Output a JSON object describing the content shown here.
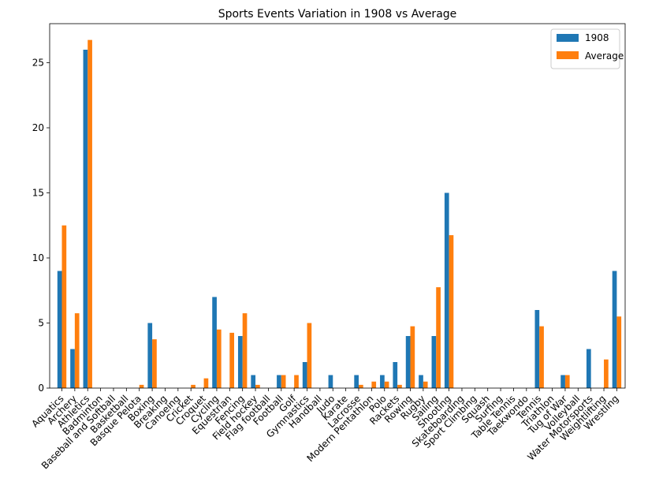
{
  "chart_data": {
    "type": "bar",
    "title": "Sports Events Variation in 1908 vs Average",
    "xlabel": "",
    "ylabel": "",
    "ylim": [
      0,
      28
    ],
    "yticks": [
      0,
      5,
      10,
      15,
      20,
      25
    ],
    "grid": false,
    "legend_position": "top-right",
    "categories": [
      "Aquatics",
      "Archery",
      "Athletics",
      "Badminton",
      "Baseball and Softball",
      "Basketball",
      "Basque Pelota",
      "Boxing",
      "Breaking",
      "Canoeing",
      "Cricket",
      "Croquet",
      "Cycling",
      "Equestrian",
      "Fencing",
      "Field hockey",
      "Flag football",
      "Football",
      "Golf",
      "Gymnastics",
      "Handball",
      "Judo",
      "Karate",
      "Lacrosse",
      "Modern Pentathlon",
      "Polo",
      "Rackets",
      "Rowing",
      "Rugby",
      "Sailing",
      "Shooting",
      "Skateboarding",
      "Sport Climbing",
      "Squash",
      "Surfing",
      "Table Tennis",
      "Taekwondo",
      "Tennis",
      "Triathlon",
      "Tug of War",
      "Volleyball",
      "Water Motorsports",
      "Weightlifting",
      "Wrestling"
    ],
    "series": [
      {
        "name": "1908",
        "color": "#1f77b4",
        "values": [
          9,
          3,
          26,
          0,
          0,
          0,
          0,
          5,
          0,
          0,
          0,
          0,
          7,
          0,
          4,
          1,
          0,
          1,
          0,
          2,
          0,
          1,
          0,
          1,
          0,
          1,
          2,
          4,
          1,
          4,
          15,
          0,
          0,
          0,
          0,
          0,
          0,
          6,
          0,
          1,
          0,
          3,
          0,
          9
        ]
      },
      {
        "name": "Average",
        "color": "#ff7f0e",
        "values": [
          12.5,
          5.75,
          26.75,
          0,
          0,
          0,
          0.25,
          3.75,
          0,
          0,
          0.25,
          0.75,
          4.5,
          4.25,
          5.75,
          0.25,
          0,
          1,
          1,
          5,
          0,
          0,
          0,
          0.25,
          0.5,
          0.5,
          0.25,
          4.75,
          0.5,
          7.75,
          11.75,
          0,
          0,
          0,
          0,
          0,
          0,
          4.75,
          0,
          1,
          0,
          0,
          2.2,
          5.5
        ]
      }
    ]
  }
}
